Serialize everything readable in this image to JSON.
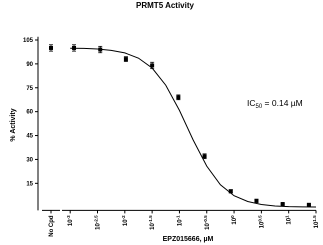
{
  "chart_data": {
    "type": "dose-response",
    "title": "PRMT5 Activity",
    "x_label": "EPZ015666, µM",
    "y_label": "% Activity",
    "x_scale": "log10",
    "xlim": [
      -3.15,
      1.5
    ],
    "ylim": [
      -2,
      107
    ],
    "yticks": [
      15,
      30,
      45,
      60,
      75,
      90,
      105
    ],
    "xticks": [
      {
        "value": -3,
        "label": "10",
        "sup": "-3"
      },
      {
        "value": -2.5,
        "label": "10",
        "sup": "-2.5"
      },
      {
        "value": -2,
        "label": "10",
        "sup": "-2"
      },
      {
        "value": -1.5,
        "label": "10",
        "sup": "-1.5"
      },
      {
        "value": -1,
        "label": "10",
        "sup": "-1"
      },
      {
        "value": -0.5,
        "label": "10",
        "sup": "-0.5"
      },
      {
        "value": 0,
        "label": "10",
        "sup": "0"
      },
      {
        "value": 0.5,
        "label": "10",
        "sup": "0.5"
      },
      {
        "value": 1,
        "label": "10",
        "sup": "1"
      },
      {
        "value": 1.5,
        "label": "10",
        "sup": "1.5"
      }
    ],
    "control": {
      "label": "No Cpd",
      "value": 100,
      "error": 2
    },
    "color": "#000000",
    "x": [
      -2.93,
      -2.45,
      -1.98,
      -1.5,
      -1.02,
      -0.54,
      -0.06,
      0.41,
      0.89,
      1.37
    ],
    "values": [
      100,
      99,
      93,
      89,
      69,
      32,
      10,
      4,
      2,
      1.5
    ],
    "errors": [
      2,
      2,
      1.5,
      2,
      1.5,
      1.5,
      1,
      1,
      0.5,
      0.5
    ],
    "curve": {
      "x": [
        -3,
        -2.75,
        -2.5,
        -2.25,
        -2,
        -1.75,
        -1.5,
        -1.25,
        -1,
        -0.75,
        -0.5,
        -0.25,
        0,
        0.25,
        0.5,
        0.75,
        1,
        1.25,
        1.5
      ],
      "values": [
        99.8,
        99.7,
        99.3,
        98.5,
        96.9,
        93.6,
        87.4,
        76.6,
        60.8,
        42.3,
        25.8,
        14.1,
        7.2,
        3.6,
        1.7,
        0.8,
        0.4,
        0.2,
        0.1
      ]
    },
    "annotation": {
      "text": "IC",
      "sub": "50",
      "rest": " = 0.14 µM"
    }
  }
}
